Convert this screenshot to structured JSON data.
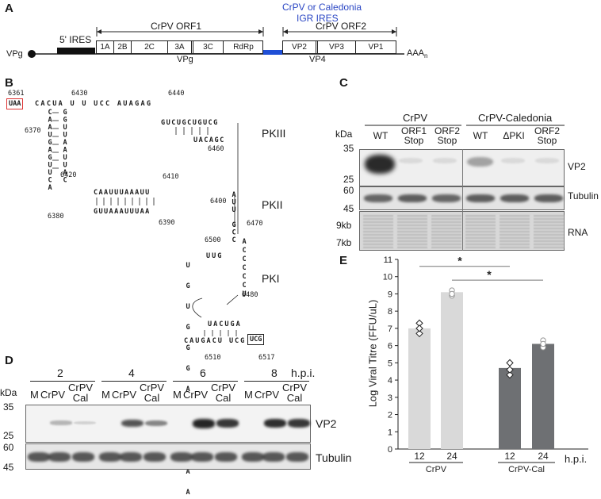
{
  "panelA": {
    "label": "A",
    "ires5": "5' IRES",
    "orf1": "CrPV ORF1",
    "igr_line1": "CrPV or Caledonia",
    "igr_line2": "IGR IRES",
    "orf2": "CrPV ORF2",
    "vpg_left": "VPg",
    "orf1_cells": [
      "1A",
      "2B",
      "2C",
      "3A",
      "3C",
      "RdRp"
    ],
    "orf2_cells": [
      "VP2",
      "VP3",
      "VP1"
    ],
    "vpg_sub": "VPg",
    "vp4_sub": "VP4",
    "polyA": "AAA",
    "polyA_sub": "n",
    "igr_color": "#1f4fd6"
  },
  "panelB": {
    "label": "B",
    "pk3": "PKIII",
    "pk2": "PKII",
    "pk1": "PKI",
    "nums": [
      "6361",
      "6430",
      "6440",
      "6370",
      "6420",
      "6460",
      "6410",
      "6400",
      "6470",
      "6380",
      "6390",
      "6500",
      "6480",
      "6510",
      "6517"
    ],
    "stop_uaa": "UAA",
    "stop_ucg": "UCG",
    "top_seq": "CACUA U U UCC AUAGAG",
    "left_stem_a": "CAAUGAGUUCA",
    "left_stem_b": "GGUUAAUUAC",
    "pk3_seq_a": "GUCUGCUGUCG",
    "pk3_seq_b": "UACAGC",
    "pk2_seq_a": "CAAUUUAAAUU",
    "pk2_seq_b": "GUUAAAUUUAA",
    "pk2_right": "AUU GCC",
    "pk1_stem": "ACCCCCU",
    "pk1_loop": "UUG",
    "bottom_seq": "CAUGACU UCG",
    "mid_seq": "UACUGA",
    "loop_bases": "U G U G G G A C A U A A"
  },
  "panelC": {
    "label": "C",
    "group1": "CrPV",
    "group2": "CrPV-Caledonia",
    "kda": "kDa",
    "lanes": [
      {
        "l1": "WT",
        "l2": ""
      },
      {
        "l1": "ORF1",
        "l2": "Stop"
      },
      {
        "l1": "ORF2",
        "l2": "Stop"
      },
      {
        "l1": "WT",
        "l2": ""
      },
      {
        "l1": "ΔPKI",
        "l2": ""
      },
      {
        "l1": "ORF2",
        "l2": "Stop"
      }
    ],
    "markers_vp2": [
      "35",
      "25"
    ],
    "markers_tub": [
      "60",
      "45"
    ],
    "markers_rna": [
      "9kb",
      "7kb"
    ],
    "row_labels": [
      "VP2",
      "Tubulin",
      "RNA"
    ],
    "vp2_levels": [
      1.0,
      0.05,
      0.05,
      0.35,
      0.05,
      0.05
    ],
    "tub_levels": [
      0.8,
      0.85,
      0.8,
      0.85,
      0.85,
      0.85
    ]
  },
  "panelD": {
    "label": "D",
    "hpi": "h.p.i.",
    "timepoints": [
      "2",
      "4",
      "6",
      "8"
    ],
    "lane_m": "M",
    "lane_crpv": "CrPV",
    "lane_cal_1": "CrPV",
    "lane_cal_2": "Cal",
    "kda": "kDa",
    "markers_vp2": [
      "35",
      "25"
    ],
    "markers_tub": [
      "60",
      "45"
    ],
    "row_labels": [
      "VP2",
      "Tubulin"
    ],
    "vp2_levels": [
      0,
      0.2,
      0.05,
      0,
      0.7,
      0.45,
      0,
      0.95,
      0.85,
      0,
      0.9,
      0.85
    ]
  },
  "panelE": {
    "label": "E",
    "ylabel": "Log Viral Titre (FFU/uL)",
    "hpi": "h.p.i.",
    "group1": "CrPV",
    "group2": "CrPV-Cal",
    "star": "*",
    "ticks": [
      "0",
      "1",
      "2",
      "3",
      "4",
      "5",
      "6",
      "7",
      "8",
      "9",
      "10",
      "11"
    ]
  },
  "chart_data": {
    "type": "bar",
    "categories": [
      "12",
      "24",
      "12",
      "24"
    ],
    "groups": [
      "CrPV",
      "CrPV",
      "CrPV-Cal",
      "CrPV-Cal"
    ],
    "values": [
      7.0,
      9.1,
      4.7,
      6.1
    ],
    "points": [
      [
        7.3,
        6.7,
        7.0
      ],
      [
        9.2,
        8.9,
        9.0
      ],
      [
        5.0,
        4.3,
        4.6
      ],
      [
        6.3,
        5.9,
        6.1
      ]
    ],
    "colors": [
      "#d9d9d9",
      "#d9d9d9",
      "#6e7073",
      "#6e7073"
    ],
    "xlabel": "h.p.i.",
    "ylabel": "Log Viral Titre (FFU/uL)",
    "ylim": [
      0,
      11
    ],
    "grid": false
  }
}
